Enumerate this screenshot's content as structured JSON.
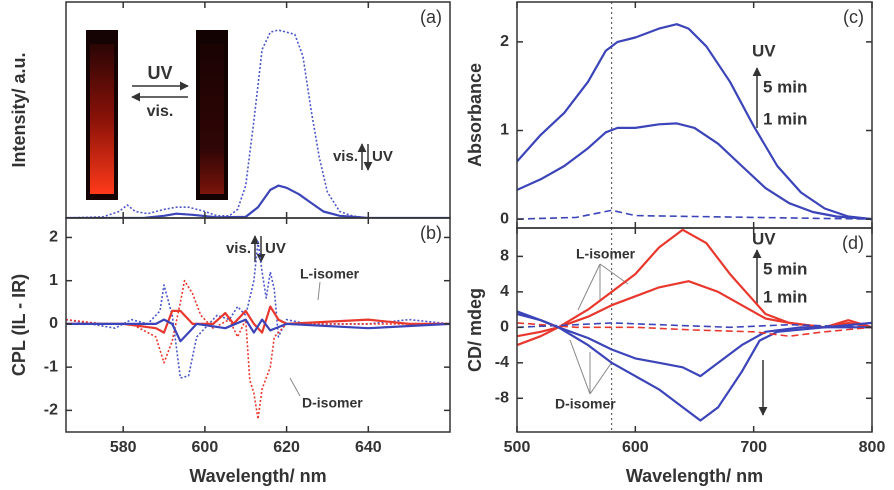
{
  "chart_data": [
    {
      "type": "line",
      "label": "(a)",
      "ylabel": "Intensity/ a.u.",
      "xlim": [
        566,
        660
      ],
      "xticks": [
        580,
        600,
        620,
        640
      ],
      "ylim": [
        0,
        1
      ],
      "annotations": [
        "UV",
        "vis.",
        "vis.",
        "UV"
      ],
      "series": [
        {
          "color": "#4a55c8",
          "style": "dotted",
          "x": [
            566,
            575,
            579,
            581,
            583,
            586,
            590,
            593,
            596,
            600,
            603,
            606,
            608,
            610,
            612,
            614,
            616,
            618,
            620,
            622,
            624,
            626,
            628,
            630,
            633,
            636,
            640,
            660
          ],
          "values": [
            0,
            0.005,
            0.03,
            0.06,
            0.03,
            0.02,
            0.04,
            0.05,
            0.05,
            0.03,
            0.01,
            0.01,
            0.04,
            0.15,
            0.45,
            0.78,
            0.86,
            0.87,
            0.86,
            0.85,
            0.75,
            0.5,
            0.28,
            0.12,
            0.03,
            0.01,
            0,
            0
          ]
        },
        {
          "color": "#3b44b8",
          "style": "solid",
          "x": [
            566,
            585,
            590,
            593,
            597,
            603,
            610,
            613,
            616,
            618,
            620,
            623,
            626,
            629,
            633,
            640,
            660
          ],
          "values": [
            0,
            0,
            0.01,
            0.02,
            0.015,
            0.003,
            0.005,
            0.05,
            0.13,
            0.15,
            0.14,
            0.11,
            0.07,
            0.03,
            0.01,
            0,
            0
          ]
        }
      ]
    },
    {
      "type": "line",
      "label": "(b)",
      "ylabel": "CPL (IL - IR)",
      "xlabel": "Wavelength/ nm",
      "xlim": [
        566,
        660
      ],
      "xticks": [
        580,
        600,
        620,
        640
      ],
      "ylim": [
        -2.5,
        2.45
      ],
      "yticks": [
        -2,
        -1,
        0,
        1,
        2
      ],
      "annotations": [
        "vis.",
        "UV",
        "L-isomer",
        "D-isomer"
      ],
      "series": [
        {
          "color": "#4a55c8",
          "style": "dotted",
          "x": [
            566,
            572,
            578,
            582,
            586,
            589,
            590,
            592,
            594,
            596,
            598,
            600,
            603,
            606,
            608,
            610,
            612,
            613,
            614,
            615,
            616,
            617,
            618,
            620,
            625,
            640,
            650,
            660
          ],
          "values": [
            0.1,
            0,
            -0.1,
            0.1,
            0,
            0.3,
            0.9,
            0.2,
            -1.25,
            -1.2,
            -0.3,
            -0.1,
            0.2,
            0.1,
            0.4,
            0.2,
            1.0,
            1.9,
            1.2,
            0.6,
            1.2,
            0.8,
            -0.3,
            0.1,
            0,
            0,
            0.1,
            0
          ]
        },
        {
          "color": "#e8382e",
          "style": "dotted",
          "x": [
            566,
            575,
            582,
            588,
            590,
            592,
            594,
            595,
            597,
            599,
            602,
            606,
            608,
            610,
            611,
            612,
            613,
            614,
            616,
            617,
            620,
            640,
            660
          ],
          "values": [
            0.1,
            0,
            0,
            -0.3,
            -0.9,
            -0.4,
            0.5,
            1.0,
            0.7,
            0.2,
            -0.1,
            0.1,
            -0.3,
            0.1,
            -1.3,
            -1.6,
            -2.2,
            -1.5,
            -1.0,
            -0.3,
            0,
            0,
            0
          ]
        },
        {
          "color": "#e8382e",
          "style": "solid",
          "x": [
            566,
            580,
            588,
            590,
            592,
            594,
            597,
            602,
            605,
            607,
            610,
            612,
            614,
            616,
            618,
            620,
            640,
            650,
            660
          ],
          "values": [
            0,
            0,
            -0.1,
            -0.2,
            0.3,
            0.3,
            0,
            0,
            0.25,
            0,
            0.3,
            0,
            -0.2,
            0.4,
            0.1,
            0,
            0.1,
            0,
            0
          ]
        },
        {
          "color": "#3b44b8",
          "style": "solid",
          "x": [
            566,
            588,
            590,
            592,
            594,
            596,
            598,
            605,
            610,
            612,
            614,
            616,
            620,
            640,
            660
          ],
          "values": [
            0,
            0,
            0.1,
            0,
            -0.4,
            -0.2,
            0,
            -0.1,
            0.1,
            -0.2,
            0.1,
            -0.15,
            0,
            -0.1,
            0
          ]
        }
      ]
    },
    {
      "type": "line",
      "label": "(c)",
      "ylabel": "Absorbance",
      "xlim": [
        500,
        800
      ],
      "xticks": [
        500,
        600,
        700,
        800
      ],
      "ylim": [
        -0.1,
        2.45
      ],
      "yticks": [
        0,
        1,
        2
      ],
      "vline": 580,
      "annotations": [
        "UV",
        "5 min",
        "1 min"
      ],
      "series": [
        {
          "color": "#3b44b8",
          "style": "solid",
          "x": [
            500,
            520,
            540,
            560,
            575,
            585,
            600,
            620,
            635,
            645,
            660,
            680,
            700,
            720,
            740,
            760,
            780,
            800
          ],
          "values": [
            0.65,
            0.95,
            1.2,
            1.55,
            1.9,
            2.0,
            2.05,
            2.15,
            2.2,
            2.15,
            1.95,
            1.55,
            1.05,
            0.6,
            0.3,
            0.12,
            0.03,
            0
          ]
        },
        {
          "color": "#3b44b8",
          "style": "solid",
          "x": [
            500,
            520,
            540,
            560,
            575,
            585,
            600,
            620,
            635,
            650,
            670,
            690,
            710,
            730,
            750,
            770,
            800
          ],
          "values": [
            0.33,
            0.45,
            0.6,
            0.8,
            0.98,
            1.03,
            1.03,
            1.07,
            1.08,
            1.03,
            0.85,
            0.6,
            0.35,
            0.18,
            0.08,
            0.03,
            0
          ]
        },
        {
          "color": "#3b44b8",
          "style": "dashed",
          "x": [
            500,
            550,
            580,
            600,
            650,
            700,
            750,
            800
          ],
          "values": [
            0,
            0.02,
            0.1,
            0.04,
            0.03,
            0.02,
            0.01,
            0
          ]
        }
      ]
    },
    {
      "type": "line",
      "label": "(d)",
      "ylabel": "CD/ mdeg",
      "xlabel": "Wavelength/ nm",
      "xlim": [
        500,
        800
      ],
      "xticks": [
        500,
        600,
        700,
        800
      ],
      "ylim": [
        -11.8,
        11.2
      ],
      "yticks": [
        -8,
        -4,
        0,
        4,
        8
      ],
      "vline": 580,
      "annotations": [
        "UV",
        "5 min",
        "1 min",
        "L-isomer",
        "D-isomer"
      ],
      "series": [
        {
          "color": "#e8382e",
          "style": "solid",
          "x": [
            500,
            520,
            535,
            560,
            580,
            600,
            620,
            640,
            660,
            680,
            700,
            710,
            730,
            760,
            780,
            800
          ],
          "values": [
            -1,
            -0.5,
            0,
            2,
            4,
            6,
            9,
            11,
            9.5,
            6,
            3,
            1.5,
            0.5,
            0,
            0.8,
            0
          ]
        },
        {
          "color": "#e8382e",
          "style": "solid",
          "x": [
            500,
            520,
            535,
            560,
            580,
            600,
            620,
            645,
            670,
            690,
            710,
            730,
            760,
            780,
            800
          ],
          "values": [
            -2,
            -1,
            0,
            1.2,
            2.5,
            3.5,
            4.5,
            5.2,
            4,
            2.5,
            1,
            0.5,
            0,
            0.5,
            0
          ]
        },
        {
          "color": "#3b44b8",
          "style": "solid",
          "x": [
            500,
            520,
            535,
            560,
            580,
            600,
            620,
            640,
            655,
            670,
            690,
            705,
            720,
            760,
            800
          ],
          "values": [
            1.5,
            0.8,
            0,
            -2,
            -4,
            -5.5,
            -7,
            -9,
            -10.5,
            -9,
            -5,
            -1.5,
            -0.5,
            0,
            0.5
          ]
        },
        {
          "color": "#3b44b8",
          "style": "solid",
          "x": [
            500,
            520,
            535,
            560,
            580,
            600,
            620,
            640,
            655,
            670,
            690,
            710,
            740,
            800
          ],
          "values": [
            1.8,
            0.8,
            0,
            -1.2,
            -2.5,
            -3.5,
            -4,
            -4.5,
            -5.5,
            -4,
            -2,
            -0.5,
            0,
            0
          ]
        },
        {
          "color": "#e8382e",
          "style": "dashed",
          "x": [
            500,
            550,
            600,
            650,
            700,
            730,
            760,
            800
          ],
          "values": [
            0.5,
            0,
            0,
            -0.3,
            -0.5,
            -1,
            -0.5,
            0
          ]
        },
        {
          "color": "#3b44b8",
          "style": "dashed",
          "x": [
            500,
            550,
            580,
            620,
            680,
            730,
            800
          ],
          "values": [
            0,
            0.3,
            0.5,
            0.3,
            0,
            0.3,
            0
          ]
        }
      ]
    }
  ]
}
